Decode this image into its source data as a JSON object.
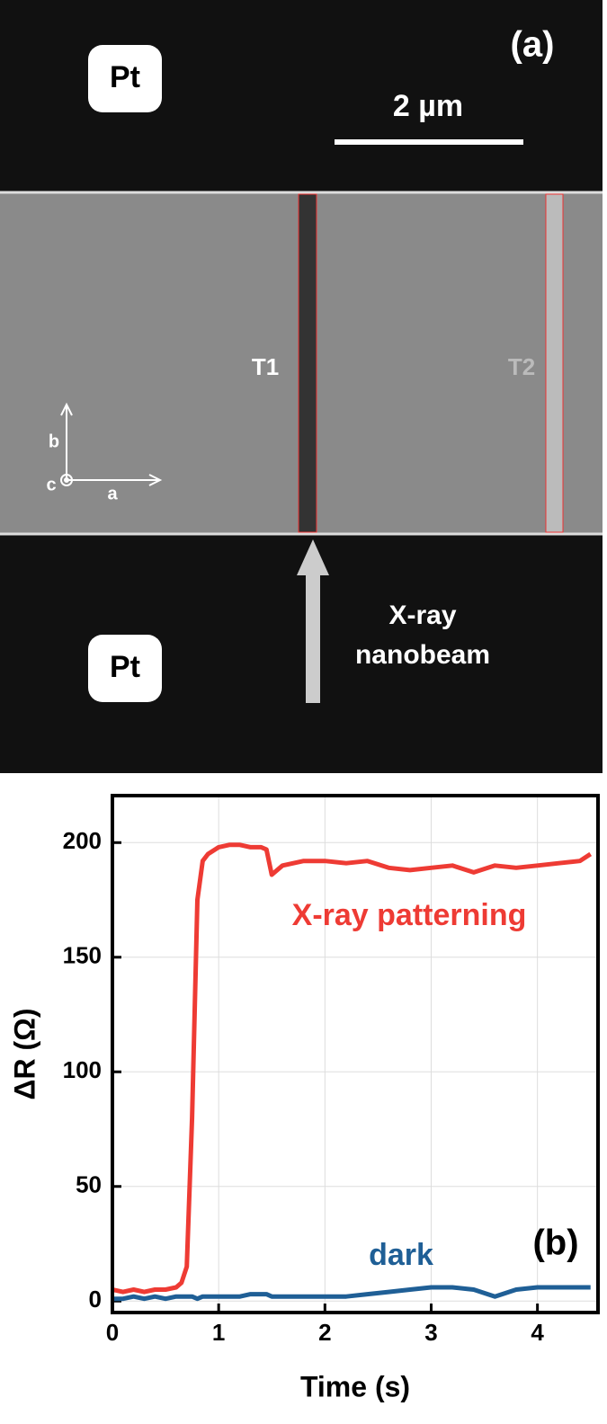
{
  "image_labels": {
    "panel": "(a)",
    "pt_top": "Pt",
    "pt_bottom": "Pt",
    "scale_bar": "2 µm",
    "t1": "T1",
    "t2": "T2",
    "axis_a": "a",
    "axis_b": "b",
    "axis_c": "c",
    "beam_line1": "X-ray",
    "beam_line2": "nanobeam"
  },
  "chart_data": {
    "type": "line",
    "panel": "(b)",
    "x_label": "Time (s)",
    "y_label": "ΔR (Ω)",
    "x": [
      0,
      0.1,
      0.2,
      0.3,
      0.4,
      0.5,
      0.6,
      0.65,
      0.7,
      0.75,
      0.8,
      0.85,
      0.9,
      1.0,
      1.1,
      1.2,
      1.3,
      1.4,
      1.45,
      1.5,
      1.6,
      1.8,
      2.0,
      2.2,
      2.4,
      2.6,
      2.8,
      3.0,
      3.2,
      3.4,
      3.6,
      3.8,
      4.0,
      4.2,
      4.4,
      4.5
    ],
    "series": [
      {
        "name": "X-ray patterning",
        "color": "#ee3b34",
        "values": [
          5,
          4,
          5,
          4,
          5,
          5,
          6,
          8,
          15,
          80,
          175,
          192,
          195,
          198,
          199,
          199,
          198,
          198,
          197,
          186,
          190,
          192,
          192,
          191,
          192,
          189,
          188,
          189,
          190,
          187,
          190,
          189,
          190,
          191,
          192,
          195
        ]
      },
      {
        "name": "dark",
        "color": "#1f5f96",
        "values": [
          1,
          1,
          2,
          1,
          2,
          1,
          2,
          2,
          2,
          2,
          1,
          2,
          2,
          2,
          2,
          2,
          3,
          3,
          3,
          2,
          2,
          2,
          2,
          2,
          3,
          4,
          5,
          6,
          6,
          5,
          2,
          5,
          6,
          6,
          6,
          6
        ]
      }
    ],
    "xlim": [
      0,
      4.57
    ],
    "ylim": [
      -5,
      220.5
    ],
    "xticks": [
      0,
      1,
      2,
      3,
      4
    ],
    "yticks": [
      0,
      50,
      100,
      150,
      200
    ],
    "grid": true
  }
}
